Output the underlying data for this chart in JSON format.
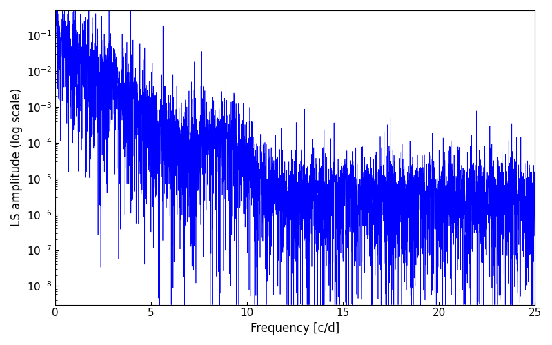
{
  "title": "",
  "xlabel": "Frequency [c/d]",
  "ylabel": "LS amplitude (log scale)",
  "xlim": [
    0,
    25
  ],
  "ylim": [
    3e-09,
    0.5
  ],
  "line_color": "#0000ff",
  "line_width": 0.5,
  "yscale": "log",
  "figsize": [
    8.0,
    5.0
  ],
  "dpi": 100,
  "background_color": "#ffffff",
  "seed": 42,
  "n_points": 5000,
  "freq_max": 25.0
}
